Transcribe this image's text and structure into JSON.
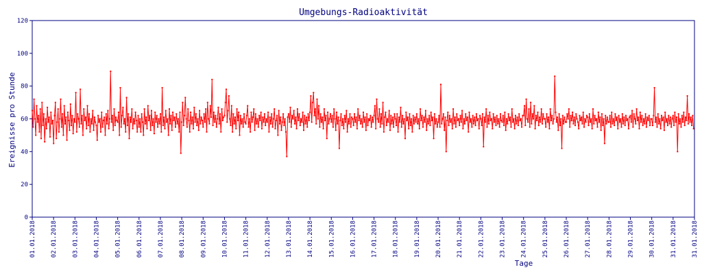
{
  "chart_data": {
    "type": "line",
    "title": "Umgebungs-Radioaktivität",
    "xlabel": "Tage",
    "ylabel": "Ereignisse pro Stunde",
    "ylim": [
      0,
      120
    ],
    "yticks": [
      0,
      20,
      40,
      60,
      80,
      100,
      120
    ],
    "xticks": [
      "01.01.2018",
      "02.01.2018",
      "03.01.2018",
      "04.01.2018",
      "05.01.2018",
      "06.01.2018",
      "07.01.2018",
      "08.01.2018",
      "09.01.2018",
      "10.01.2018",
      "11.01.2018",
      "12.01.2018",
      "13.01.2018",
      "14.01.2018",
      "15.01.2018",
      "16.01.2018",
      "17.01.2018",
      "18.01.2018",
      "19.01.2018",
      "20.01.2018",
      "21.01.2018",
      "22.01.2018",
      "23.01.2018",
      "24.01.2018",
      "25.01.2018",
      "26.01.2018",
      "27.01.2018",
      "28.01.2018",
      "29.01.2018",
      "30.01.2018",
      "31.01.2018",
      "31.01.2018"
    ],
    "grid": false,
    "series": [
      {
        "color": "#ff0000",
        "daily_values": [
          [
            65,
            55,
            72,
            60,
            50,
            68,
            58,
            62,
            52,
            66,
            48,
            70,
            56,
            63,
            46,
            60,
            54,
            67,
            58,
            61,
            49,
            64,
            57,
            59
          ],
          [
            45,
            62,
            70,
            48,
            58,
            66,
            52,
            60,
            72,
            55,
            63,
            50,
            68,
            57,
            61,
            47,
            64,
            59,
            53,
            69,
            56,
            62,
            51,
            60
          ],
          [
            58,
            76,
            52,
            63,
            60,
            55,
            78,
            57,
            62,
            50,
            66,
            59,
            61,
            54,
            68,
            56,
            63,
            52,
            60,
            57,
            65,
            53,
            61,
            58
          ],
          [
            56,
            47,
            62,
            58,
            60,
            52,
            64,
            55,
            59,
            61,
            50,
            63,
            57,
            65,
            54,
            60,
            89,
            58,
            62,
            53,
            66,
            56,
            61,
            59
          ],
          [
            58,
            64,
            50,
            79,
            55,
            62,
            67,
            57,
            60,
            52,
            73,
            56,
            63,
            48,
            61,
            58,
            66,
            54,
            60,
            57,
            64,
            59,
            52,
            62
          ],
          [
            55,
            60,
            52,
            63,
            58,
            50,
            66,
            57,
            61,
            54,
            68,
            59,
            62,
            53,
            65,
            56,
            60,
            51,
            64,
            58,
            62,
            55,
            60,
            57
          ],
          [
            63,
            52,
            79,
            56,
            61,
            54,
            65,
            58,
            60,
            50,
            66,
            57,
            62,
            53,
            64,
            59,
            61,
            55,
            63,
            57,
            60,
            52,
            64,
            39
          ],
          [
            58,
            70,
            56,
            62,
            73,
            60,
            55,
            66,
            59,
            52,
            64,
            57,
            61,
            54,
            67,
            58,
            63,
            56,
            60,
            53,
            65,
            57,
            61,
            59
          ],
          [
            55,
            63,
            58,
            66,
            52,
            70,
            60,
            57,
            68,
            61,
            84,
            56,
            64,
            58,
            62,
            55,
            60,
            67,
            57,
            63,
            52,
            66,
            59,
            61
          ],
          [
            62,
            70,
            78,
            58,
            65,
            74,
            60,
            56,
            68,
            52,
            63,
            57,
            61,
            54,
            66,
            59,
            64,
            50,
            62,
            57,
            60,
            55,
            63,
            58
          ],
          [
            57,
            62,
            68,
            55,
            60,
            52,
            64,
            58,
            61,
            66,
            53,
            63,
            57,
            60,
            55,
            62,
            59,
            64,
            54,
            61,
            58,
            63,
            56,
            60
          ],
          [
            58,
            64,
            52,
            61,
            57,
            63,
            55,
            60,
            66,
            54,
            59,
            62,
            50,
            65,
            57,
            61,
            53,
            58,
            63,
            56,
            60,
            52,
            37,
            61
          ],
          [
            63,
            58,
            67,
            55,
            62,
            60,
            65,
            57,
            61,
            54,
            66,
            59,
            63,
            56,
            60,
            58,
            64,
            53,
            62,
            57,
            61,
            55,
            63,
            59
          ],
          [
            64,
            74,
            58,
            70,
            76,
            62,
            66,
            57,
            72,
            60,
            68,
            55,
            63,
            58,
            61,
            54,
            66,
            59,
            62,
            48,
            64,
            57,
            60,
            63
          ],
          [
            58,
            62,
            55,
            66,
            60,
            53,
            64,
            57,
            61,
            42,
            59,
            63,
            56,
            60,
            54,
            62,
            58,
            65,
            52,
            60,
            57,
            63,
            55,
            61
          ],
          [
            60,
            56,
            63,
            58,
            61,
            54,
            66,
            59,
            62,
            57,
            60,
            55,
            64,
            58,
            61,
            53,
            63,
            56,
            60,
            59,
            62,
            55,
            61,
            58
          ],
          [
            62,
            68,
            54,
            72,
            60,
            58,
            66,
            55,
            63,
            57,
            70,
            52,
            61,
            64,
            56,
            60,
            58,
            65,
            53,
            62,
            57,
            61,
            55,
            63
          ],
          [
            60,
            56,
            63,
            52,
            61,
            58,
            67,
            55,
            62,
            57,
            60,
            48,
            64,
            59,
            61,
            54,
            63,
            56,
            60,
            52,
            62,
            57,
            61,
            58
          ],
          [
            63,
            57,
            60,
            54,
            66,
            59,
            62,
            55,
            61,
            58,
            65,
            53,
            60,
            57,
            62,
            56,
            64,
            59,
            61,
            48,
            63,
            57,
            60,
            55
          ],
          [
            58,
            62,
            55,
            81,
            57,
            60,
            63,
            53,
            61,
            40,
            59,
            64,
            56,
            62,
            58,
            60,
            54,
            66,
            57,
            61,
            55,
            63,
            59,
            60
          ],
          [
            56,
            62,
            58,
            65,
            54,
            60,
            57,
            63,
            59,
            61,
            52,
            64,
            58,
            60,
            55,
            62,
            57,
            61,
            56,
            63,
            59,
            60,
            54,
            62
          ],
          [
            60,
            56,
            63,
            43,
            61,
            58,
            66,
            55,
            62,
            57,
            64,
            59,
            60,
            54,
            63,
            58,
            61,
            56,
            62,
            57,
            60,
            55,
            63,
            59
          ],
          [
            58,
            62,
            56,
            64,
            53,
            60,
            57,
            63,
            59,
            61,
            55,
            66,
            58,
            60,
            54,
            62,
            57,
            61,
            56,
            63,
            59,
            60,
            55,
            62
          ],
          [
            62,
            68,
            56,
            72,
            60,
            58,
            66,
            55,
            70,
            57,
            63,
            60,
            68,
            54,
            62,
            59,
            64,
            56,
            61,
            58,
            66,
            57,
            63,
            60
          ],
          [
            60,
            55,
            63,
            58,
            61,
            54,
            66,
            59,
            62,
            57,
            60,
            86,
            64,
            58,
            61,
            53,
            63,
            56,
            60,
            42,
            62,
            57,
            61,
            58
          ],
          [
            58,
            63,
            60,
            66,
            55,
            62,
            59,
            64,
            57,
            61,
            56,
            63,
            60,
            58,
            54,
            62,
            59,
            61,
            57,
            64,
            55,
            60,
            58,
            62
          ],
          [
            61,
            56,
            63,
            58,
            60,
            54,
            66,
            57,
            62,
            59,
            60,
            55,
            64,
            58,
            61,
            53,
            63,
            56,
            60,
            45,
            62,
            57,
            61,
            58
          ],
          [
            58,
            62,
            55,
            64,
            57,
            60,
            56,
            63,
            59,
            61,
            54,
            62,
            58,
            60,
            55,
            63,
            57,
            61,
            56,
            62,
            59,
            60,
            54,
            61
          ],
          [
            62,
            58,
            65,
            55,
            63,
            60,
            57,
            66,
            59,
            61,
            54,
            64,
            58,
            62,
            56,
            60,
            57,
            63,
            55,
            61,
            59,
            62,
            56,
            60
          ],
          [
            60,
            56,
            62,
            79,
            58,
            61,
            55,
            63,
            57,
            60,
            54,
            62,
            59,
            61,
            53,
            64,
            58,
            60,
            56,
            62,
            57,
            61,
            55,
            60
          ],
          [
            62,
            56,
            64,
            58,
            61,
            40,
            63,
            57,
            60,
            55,
            62,
            58,
            64,
            56,
            61,
            59,
            74,
            57,
            63,
            58,
            61,
            56,
            62,
            54
          ]
        ]
      }
    ]
  }
}
